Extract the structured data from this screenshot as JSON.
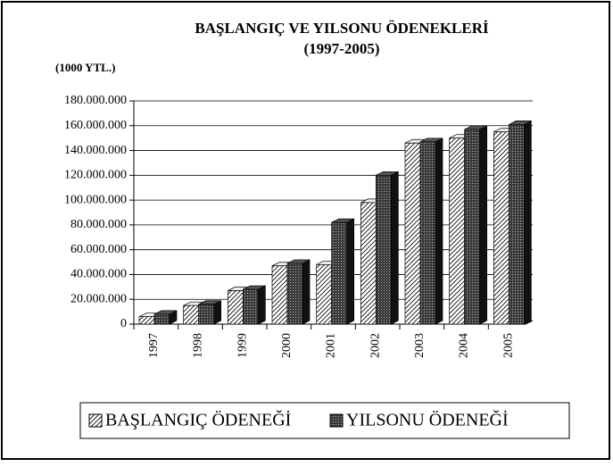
{
  "chart_data": {
    "type": "bar3d",
    "title": "BAŞLANGIÇ VE YILSONU ÖDENEKLERİ",
    "subtitle": "(1997-2005)",
    "y_unit_label": "(1000 YTL.)",
    "categories": [
      "1997",
      "1998",
      "1999",
      "2000",
      "2001",
      "2002",
      "2003",
      "2004",
      "2005"
    ],
    "series": [
      {
        "name": "BAŞLANGIÇ ÖDENEĞİ",
        "color": "#ffffff",
        "values": [
          6000000,
          15000000,
          27000000,
          47000000,
          48000000,
          98000000,
          146000000,
          150000000,
          155000000
        ]
      },
      {
        "name": "YILSONU ÖDENEĞİ",
        "color": "#3a3a3a",
        "values": [
          8000000,
          16000000,
          28000000,
          49000000,
          82000000,
          120000000,
          147000000,
          157000000,
          161000000
        ]
      }
    ],
    "ylim": [
      0,
      180000000
    ],
    "yticks": [
      {
        "value": 0,
        "label": "0"
      },
      {
        "value": 20000000,
        "label": "20.000.000"
      },
      {
        "value": 40000000,
        "label": "40.000.000"
      },
      {
        "value": 60000000,
        "label": "60.000.000"
      },
      {
        "value": 80000000,
        "label": "80.000.000"
      },
      {
        "value": 100000000,
        "label": "100.000.000"
      },
      {
        "value": 120000000,
        "label": "120.000.000"
      },
      {
        "value": 140000000,
        "label": "140.000.000"
      },
      {
        "value": 160000000,
        "label": "160.000.000"
      },
      {
        "value": 180000000,
        "label": "180.000.000"
      }
    ],
    "grid": true,
    "legend": "bottom"
  }
}
